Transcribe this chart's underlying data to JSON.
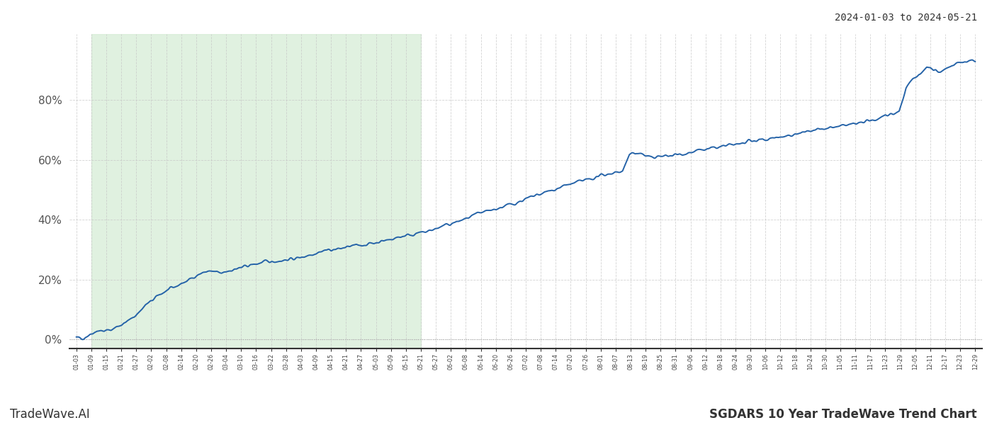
{
  "title_top_right": "2024-01-03 to 2024-05-21",
  "footer_left": "TradeWave.AI",
  "footer_right": "SGDARS 10 Year TradeWave Trend Chart",
  "line_color": "#2563a8",
  "line_width": 1.3,
  "shaded_region_color": "#d4ecd4",
  "shaded_region_alpha": 0.7,
  "background_color": "#ffffff",
  "grid_color": "#c8c8c8",
  "ylim": [
    -0.03,
    1.02
  ],
  "yticks": [
    0.0,
    0.2,
    0.4,
    0.6,
    0.8
  ],
  "ytick_labels": [
    "0%",
    "20%",
    "40%",
    "60%",
    "80%"
  ],
  "x_tick_labels": [
    "01-03",
    "01-09",
    "01-15",
    "01-21",
    "01-27",
    "02-02",
    "02-08",
    "02-14",
    "02-20",
    "02-26",
    "03-04",
    "03-10",
    "03-16",
    "03-22",
    "03-28",
    "04-03",
    "04-09",
    "04-15",
    "04-21",
    "04-27",
    "05-03",
    "05-09",
    "05-15",
    "05-21",
    "05-27",
    "06-02",
    "06-08",
    "06-14",
    "06-20",
    "06-26",
    "07-02",
    "07-08",
    "07-14",
    "07-20",
    "07-26",
    "08-01",
    "08-07",
    "08-13",
    "08-19",
    "08-25",
    "08-31",
    "09-06",
    "09-12",
    "09-18",
    "09-24",
    "09-30",
    "10-06",
    "10-12",
    "10-18",
    "10-24",
    "10-30",
    "11-05",
    "11-11",
    "11-17",
    "11-23",
    "11-29",
    "12-05",
    "12-11",
    "12-17",
    "12-23",
    "12-29"
  ],
  "trend_points": [
    [
      0,
      0.005
    ],
    [
      2,
      0.005
    ],
    [
      4,
      0.018
    ],
    [
      6,
      0.03
    ],
    [
      8,
      0.028
    ],
    [
      10,
      0.032
    ],
    [
      12,
      0.045
    ],
    [
      14,
      0.055
    ],
    [
      16,
      0.07
    ],
    [
      18,
      0.09
    ],
    [
      20,
      0.115
    ],
    [
      22,
      0.13
    ],
    [
      24,
      0.15
    ],
    [
      26,
      0.162
    ],
    [
      28,
      0.172
    ],
    [
      30,
      0.185
    ],
    [
      32,
      0.195
    ],
    [
      34,
      0.21
    ],
    [
      36,
      0.22
    ],
    [
      38,
      0.228
    ],
    [
      40,
      0.225
    ],
    [
      42,
      0.22
    ],
    [
      44,
      0.23
    ],
    [
      46,
      0.235
    ],
    [
      48,
      0.24
    ],
    [
      50,
      0.248
    ],
    [
      52,
      0.252
    ],
    [
      54,
      0.258
    ],
    [
      56,
      0.26
    ],
    [
      58,
      0.262
    ],
    [
      60,
      0.265
    ],
    [
      62,
      0.268
    ],
    [
      64,
      0.272
    ],
    [
      66,
      0.278
    ],
    [
      68,
      0.285
    ],
    [
      70,
      0.292
    ],
    [
      72,
      0.298
    ],
    [
      74,
      0.3
    ],
    [
      76,
      0.302
    ],
    [
      78,
      0.308
    ],
    [
      80,
      0.312
    ],
    [
      82,
      0.315
    ],
    [
      84,
      0.318
    ],
    [
      86,
      0.322
    ],
    [
      88,
      0.328
    ],
    [
      90,
      0.332
    ],
    [
      92,
      0.338
    ],
    [
      94,
      0.344
    ],
    [
      96,
      0.35
    ],
    [
      98,
      0.352
    ],
    [
      100,
      0.356
    ],
    [
      102,
      0.362
    ],
    [
      104,
      0.37
    ],
    [
      106,
      0.378
    ],
    [
      108,
      0.385
    ],
    [
      110,
      0.392
    ],
    [
      112,
      0.4
    ],
    [
      114,
      0.408
    ],
    [
      116,
      0.418
    ],
    [
      118,
      0.425
    ],
    [
      120,
      0.432
    ],
    [
      122,
      0.438
    ],
    [
      124,
      0.445
    ],
    [
      126,
      0.452
    ],
    [
      128,
      0.46
    ],
    [
      130,
      0.468
    ],
    [
      132,
      0.476
    ],
    [
      134,
      0.484
    ],
    [
      136,
      0.492
    ],
    [
      138,
      0.5
    ],
    [
      140,
      0.508
    ],
    [
      142,
      0.516
    ],
    [
      144,
      0.522
    ],
    [
      146,
      0.528
    ],
    [
      148,
      0.534
    ],
    [
      150,
      0.54
    ],
    [
      152,
      0.548
    ],
    [
      154,
      0.554
    ],
    [
      156,
      0.558
    ],
    [
      158,
      0.562
    ],
    [
      160,
      0.615
    ],
    [
      162,
      0.625
    ],
    [
      164,
      0.618
    ],
    [
      166,
      0.608
    ],
    [
      168,
      0.61
    ],
    [
      170,
      0.612
    ],
    [
      172,
      0.615
    ],
    [
      174,
      0.618
    ],
    [
      176,
      0.622
    ],
    [
      178,
      0.626
    ],
    [
      180,
      0.63
    ],
    [
      182,
      0.634
    ],
    [
      184,
      0.638
    ],
    [
      186,
      0.642
    ],
    [
      188,
      0.646
    ],
    [
      190,
      0.65
    ],
    [
      192,
      0.654
    ],
    [
      194,
      0.658
    ],
    [
      196,
      0.662
    ],
    [
      198,
      0.666
    ],
    [
      200,
      0.67
    ],
    [
      202,
      0.674
    ],
    [
      204,
      0.678
    ],
    [
      206,
      0.682
    ],
    [
      208,
      0.686
    ],
    [
      210,
      0.69
    ],
    [
      212,
      0.694
    ],
    [
      214,
      0.698
    ],
    [
      216,
      0.702
    ],
    [
      218,
      0.706
    ],
    [
      220,
      0.71
    ],
    [
      222,
      0.714
    ],
    [
      224,
      0.718
    ],
    [
      226,
      0.722
    ],
    [
      228,
      0.726
    ],
    [
      230,
      0.73
    ],
    [
      232,
      0.74
    ],
    [
      234,
      0.75
    ],
    [
      236,
      0.755
    ],
    [
      238,
      0.76
    ],
    [
      240,
      0.84
    ],
    [
      242,
      0.87
    ],
    [
      244,
      0.885
    ],
    [
      246,
      0.91
    ],
    [
      248,
      0.9
    ],
    [
      250,
      0.895
    ],
    [
      252,
      0.905
    ],
    [
      254,
      0.918
    ],
    [
      256,
      0.925
    ],
    [
      258,
      0.928
    ],
    [
      260,
      0.93
    ]
  ]
}
